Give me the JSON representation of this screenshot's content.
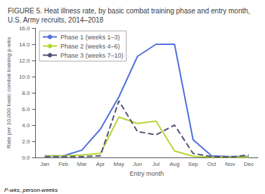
{
  "chart_data": {
    "type": "line",
    "title": "FIGURE 5. Heat illness rate, by basic combat training phase and entry month, U.S. Army recruits, 2014–2018",
    "xlabel": "Entry month",
    "ylabel": "Rate per 10,000 basic combat training p-wks",
    "annotations": [
      "P-wks, person-weeks"
    ],
    "categories": [
      "Jan",
      "Feb",
      "Mar",
      "Apr",
      "May",
      "Jun",
      "Jul",
      "Aug",
      "Sep",
      "Oct",
      "Nov",
      "Dec"
    ],
    "series": [
      {
        "name": "Phase 1 (weeks 1–3)",
        "values": [
          0.2,
          0.2,
          0.9,
          3.5,
          7.5,
          12.5,
          14.0,
          14.0,
          2.2,
          0.2,
          0.1,
          0.1
        ],
        "line_style": "solid"
      },
      {
        "name": "Phase 2 (weeks 4–6)",
        "values": [
          0.2,
          0.2,
          0.3,
          0.5,
          5.0,
          4.2,
          4.5,
          0.8,
          0.15,
          0.05,
          0.05,
          0.05
        ],
        "line_style": "solid"
      },
      {
        "name": "Phase 3 (weeks 7–10)",
        "values": [
          0.1,
          0.1,
          0.1,
          0.2,
          7.0,
          3.2,
          2.8,
          4.0,
          0.5,
          0.1,
          0.05,
          0.3
        ],
        "line_style": "dashed"
      }
    ],
    "ylim": [
      0,
      16.0
    ],
    "yticks": [
      {
        "value": 0,
        "label": "0.0"
      },
      {
        "value": 2,
        "label": "2.0"
      },
      {
        "value": 4,
        "label": "4.0"
      },
      {
        "value": 6,
        "label": "6.0"
      },
      {
        "value": 8,
        "label": "8.0"
      },
      {
        "value": 10,
        "label": "10.0"
      },
      {
        "value": 12,
        "label": "12.0"
      },
      {
        "value": 14,
        "label": "14.0"
      },
      {
        "value": 16,
        "label": "16.0"
      }
    ],
    "legend": "upper left",
    "grid": false
  }
}
